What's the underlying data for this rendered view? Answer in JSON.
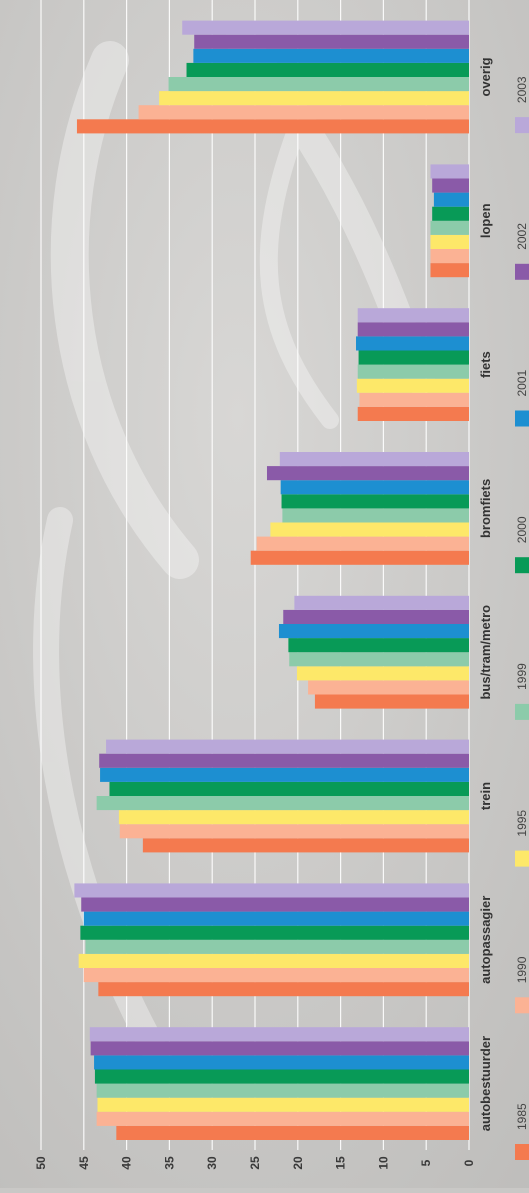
{
  "chart_data": {
    "type": "bar",
    "orientation": "horizontal",
    "text_rotation": "rotated 90 degrees counter-clockwise",
    "categories": [
      "autobestuurder",
      "autopassagier",
      "trein",
      "bus/tram/metro",
      "bromfiets",
      "fiets",
      "lopen",
      "overig"
    ],
    "series": [
      {
        "name": "1985",
        "color": "#f47a4f",
        "values": [
          41.2,
          43.3,
          38.1,
          18.0,
          25.5,
          13.0,
          4.5,
          45.8
        ]
      },
      {
        "name": "1990",
        "color": "#fbb294",
        "values": [
          43.5,
          45.0,
          40.8,
          18.8,
          24.8,
          12.8,
          4.5,
          38.6
        ]
      },
      {
        "name": "1995",
        "color": "#fde869",
        "values": [
          43.4,
          45.6,
          40.9,
          20.1,
          23.2,
          13.1,
          4.5,
          36.2
        ]
      },
      {
        "name": "1999",
        "color": "#8ccbaa",
        "values": [
          43.5,
          44.8,
          43.5,
          21.0,
          21.8,
          13.0,
          4.5,
          35.1
        ]
      },
      {
        "name": "2000",
        "color": "#089a57",
        "values": [
          43.7,
          45.4,
          42.0,
          21.1,
          21.9,
          12.9,
          4.3,
          33.0
        ]
      },
      {
        "name": "2001",
        "color": "#1d8fd1",
        "values": [
          43.8,
          45.0,
          43.1,
          22.2,
          22.0,
          13.2,
          4.1,
          32.2
        ]
      },
      {
        "name": "2002",
        "color": "#8a5aa8",
        "values": [
          44.2,
          45.3,
          43.2,
          21.7,
          23.6,
          13.0,
          4.3,
          32.1
        ]
      },
      {
        "name": "2003",
        "color": "#b9a8d9",
        "values": [
          44.3,
          46.1,
          42.4,
          20.4,
          22.1,
          13.0,
          4.5,
          33.5
        ]
      }
    ],
    "xlim": [
      0,
      50
    ],
    "ticks": [
      "0",
      "5",
      "10",
      "15",
      "20",
      "25",
      "30",
      "35",
      "40",
      "45",
      "50"
    ],
    "grid": true,
    "legend_placement": "right"
  }
}
